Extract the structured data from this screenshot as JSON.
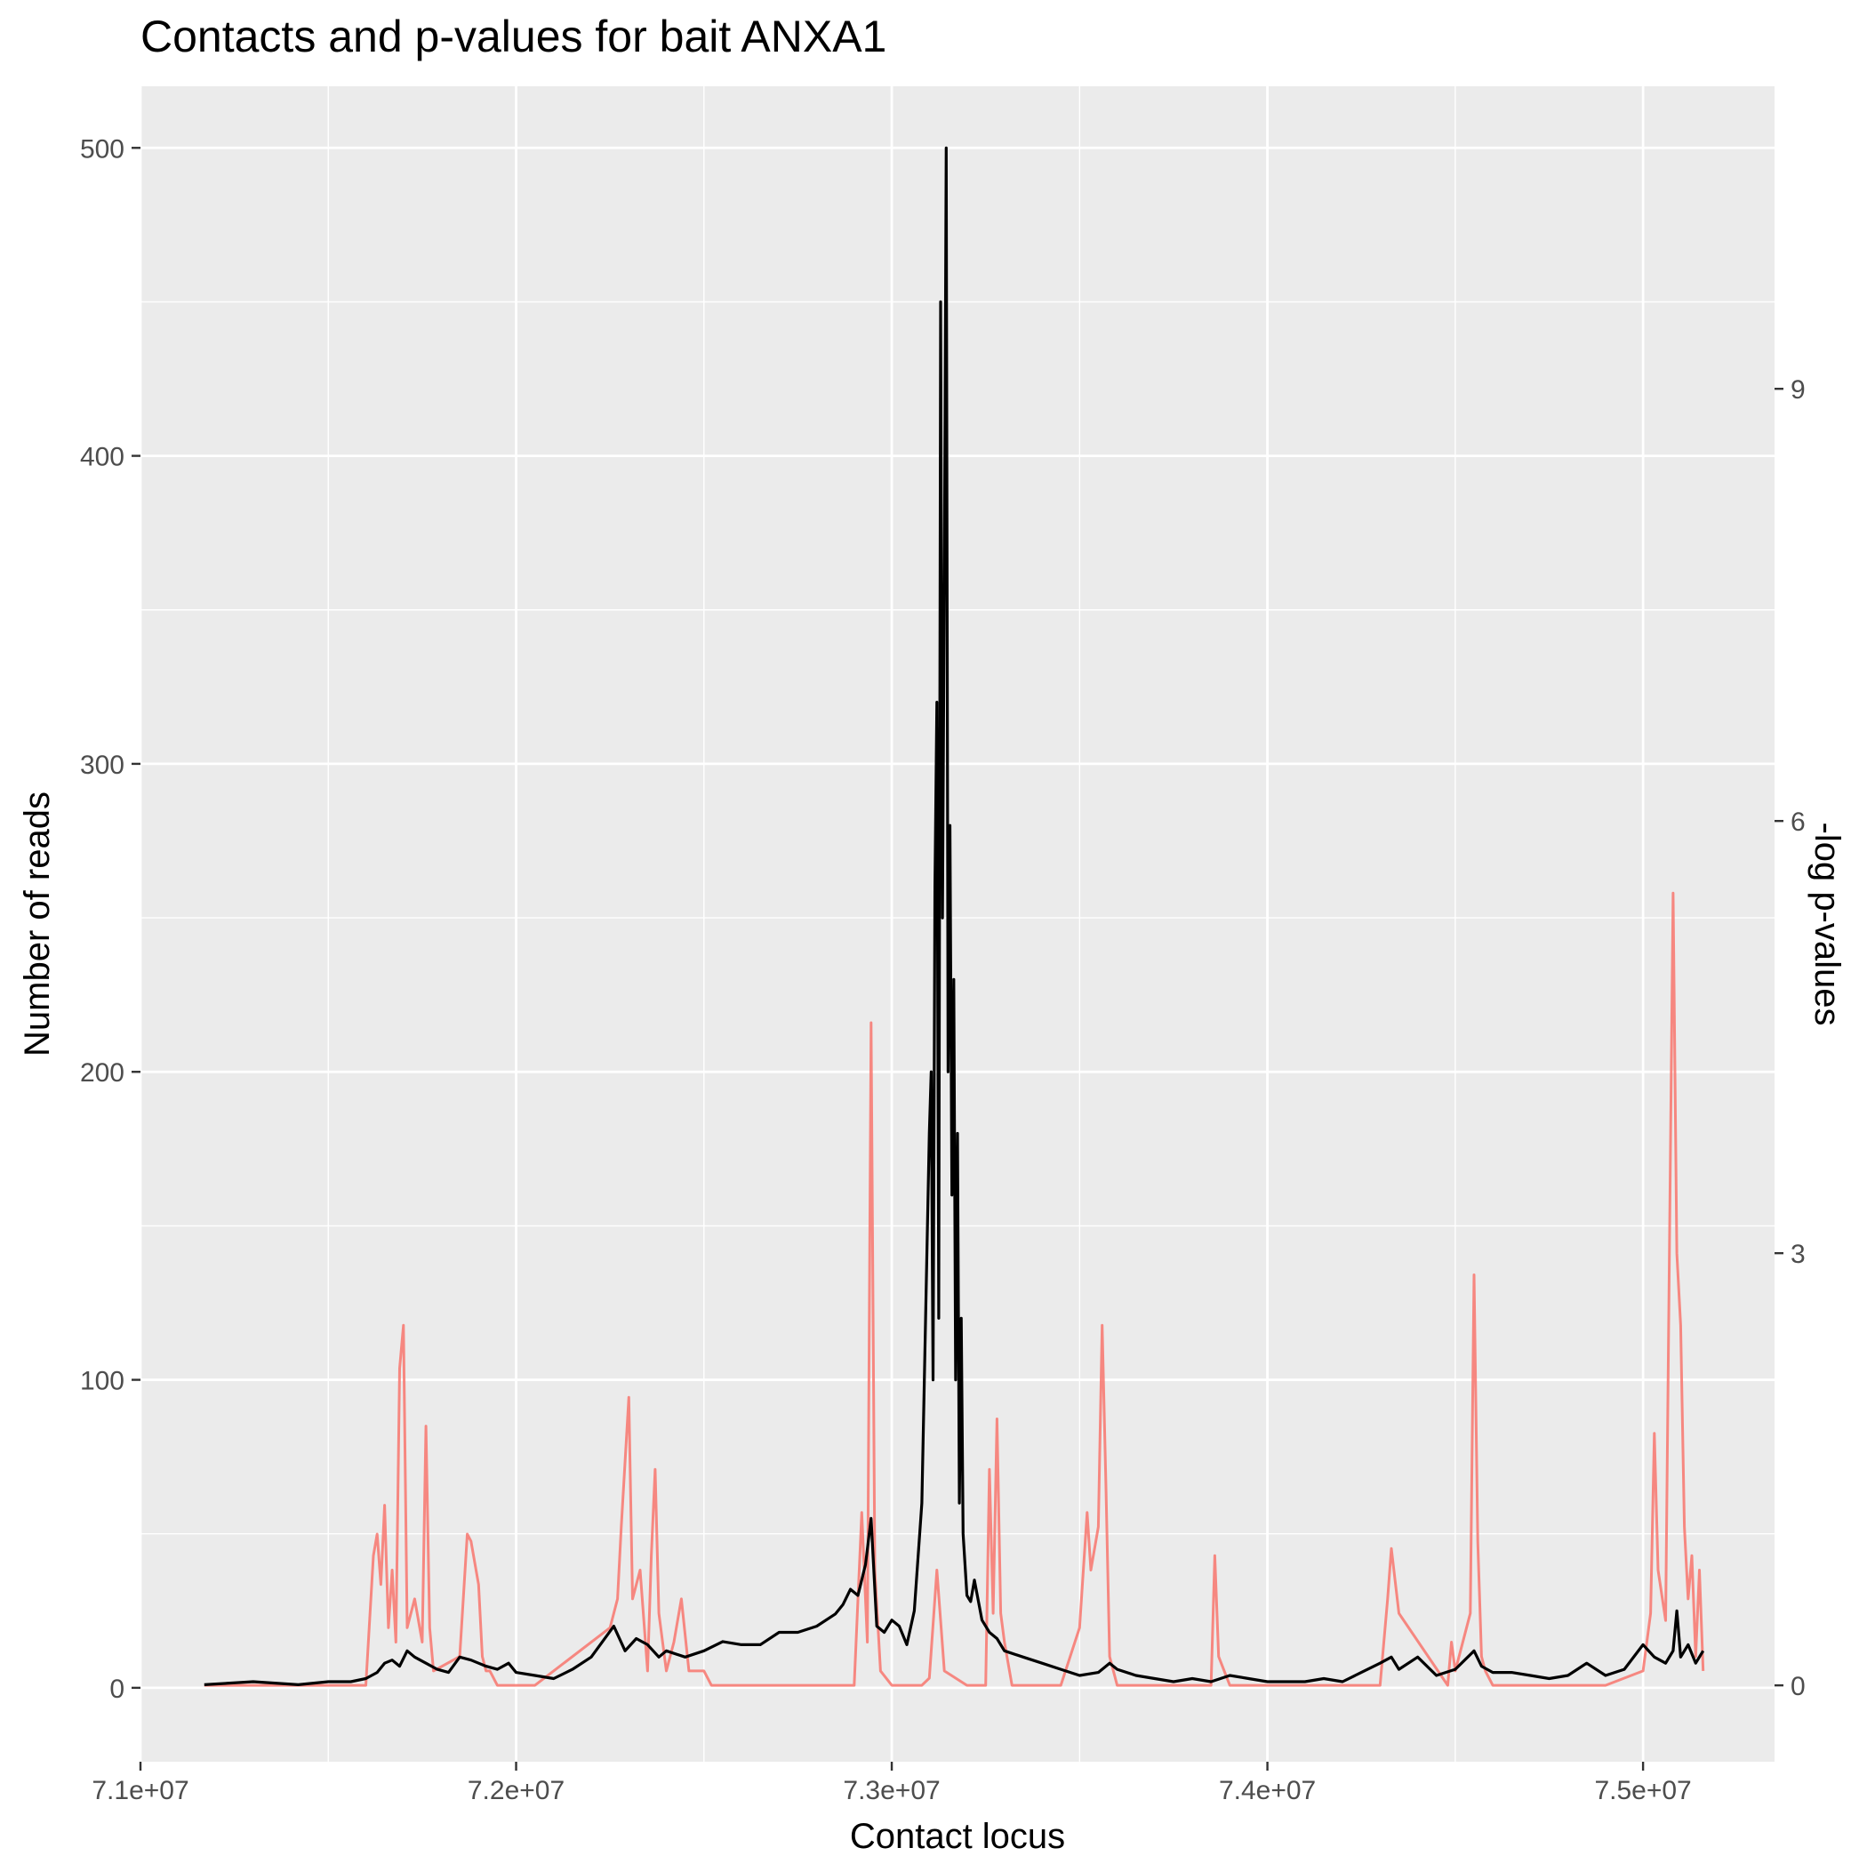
{
  "chart_data": {
    "type": "line",
    "title": "Contacts and p-values for bait ANXA1",
    "xlabel": "Contact locus",
    "ylabel": "Number of reads",
    "y2label": "-log p-values",
    "xlim": [
      71000000,
      75350000
    ],
    "ylim": [
      -24,
      520
    ],
    "y2lim": [
      -0.53,
      11.1
    ],
    "x_ticks": [
      {
        "value": 71000000,
        "label": "7.1e+07"
      },
      {
        "value": 72000000,
        "label": "7.2e+07"
      },
      {
        "value": 73000000,
        "label": "7.3e+07"
      },
      {
        "value": 74000000,
        "label": "7.4e+07"
      },
      {
        "value": 75000000,
        "label": "7.5e+07"
      }
    ],
    "y_ticks": [
      {
        "value": 0,
        "label": "0"
      },
      {
        "value": 100,
        "label": "100"
      },
      {
        "value": 200,
        "label": "200"
      },
      {
        "value": 300,
        "label": "300"
      },
      {
        "value": 400,
        "label": "400"
      },
      {
        "value": 500,
        "label": "500"
      }
    ],
    "y2_ticks": [
      {
        "value": 0,
        "label": "0"
      },
      {
        "value": 3,
        "label": "3"
      },
      {
        "value": 6,
        "label": "6"
      },
      {
        "value": 9,
        "label": "9"
      }
    ],
    "grid": true,
    "colors": {
      "panel": "#ebebeb",
      "grid": "#ffffff",
      "reads": "#000000",
      "pvalues": "#f8766d"
    },
    "series": [
      {
        "role": "reads",
        "axis": "left",
        "x": [
          71170000,
          71300000,
          71420000,
          71500000,
          71560000,
          71600000,
          71630000,
          71650000,
          71670000,
          71690000,
          71710000,
          71730000,
          71760000,
          71790000,
          71820000,
          71850000,
          71880000,
          71900000,
          71920000,
          71950000,
          71980000,
          72000000,
          72050000,
          72100000,
          72150000,
          72200000,
          72230000,
          72260000,
          72290000,
          72320000,
          72350000,
          72380000,
          72400000,
          72450000,
          72500000,
          72550000,
          72600000,
          72650000,
          72700000,
          72750000,
          72800000,
          72850000,
          72870000,
          72890000,
          72910000,
          72930000,
          72945000,
          72960000,
          72980000,
          73000000,
          73020000,
          73040000,
          73060000,
          73080000,
          73090000,
          73100000,
          73105000,
          73110000,
          73115000,
          73120000,
          73125000,
          73130000,
          73135000,
          73140000,
          73145000,
          73150000,
          73155000,
          73160000,
          73165000,
          73170000,
          73175000,
          73180000,
          73185000,
          73190000,
          73200000,
          73210000,
          73220000,
          73240000,
          73260000,
          73280000,
          73300000,
          73350000,
          73400000,
          73450000,
          73500000,
          73550000,
          73580000,
          73600000,
          73650000,
          73700000,
          73750000,
          73800000,
          73850000,
          73900000,
          73950000,
          74000000,
          74050000,
          74100000,
          74150000,
          74200000,
          74250000,
          74300000,
          74330000,
          74350000,
          74400000,
          74450000,
          74500000,
          74550000,
          74570000,
          74600000,
          74650000,
          74700000,
          74750000,
          74800000,
          74850000,
          74900000,
          74950000,
          75000000,
          75030000,
          75060000,
          75080000,
          75090000,
          75100000,
          75120000,
          75140000,
          75160000
        ],
        "y": [
          1,
          2,
          1,
          2,
          2,
          3,
          5,
          8,
          9,
          7,
          12,
          10,
          8,
          6,
          5,
          10,
          9,
          8,
          7,
          6,
          8,
          5,
          4,
          3,
          6,
          10,
          15,
          20,
          12,
          16,
          14,
          10,
          12,
          10,
          12,
          15,
          14,
          14,
          18,
          18,
          20,
          24,
          27,
          32,
          30,
          40,
          55,
          20,
          18,
          22,
          20,
          14,
          25,
          60,
          120,
          180,
          200,
          100,
          260,
          320,
          120,
          450,
          250,
          360,
          500,
          200,
          280,
          160,
          230,
          100,
          180,
          60,
          120,
          50,
          30,
          28,
          35,
          22,
          18,
          16,
          12,
          10,
          8,
          6,
          4,
          5,
          8,
          6,
          4,
          3,
          2,
          3,
          2,
          4,
          3,
          2,
          2,
          2,
          3,
          2,
          5,
          8,
          10,
          6,
          10,
          4,
          6,
          12,
          7,
          5,
          5,
          4,
          3,
          4,
          8,
          4,
          6,
          14,
          10,
          8,
          12,
          25,
          10,
          14,
          8,
          12
        ]
      },
      {
        "role": "pvalues",
        "axis": "right",
        "x": [
          71170000,
          71400000,
          71600000,
          71620000,
          71630000,
          71640000,
          71650000,
          71660000,
          71670000,
          71680000,
          71690000,
          71700000,
          71710000,
          71730000,
          71750000,
          71760000,
          71770000,
          71780000,
          71850000,
          71870000,
          71880000,
          71900000,
          71910000,
          71920000,
          71930000,
          71950000,
          72050000,
          72250000,
          72270000,
          72280000,
          72300000,
          72310000,
          72330000,
          72350000,
          72360000,
          72370000,
          72380000,
          72400000,
          72420000,
          72440000,
          72460000,
          72500000,
          72520000,
          72700000,
          72900000,
          72920000,
          72935000,
          72945000,
          72955000,
          72970000,
          73000000,
          73080000,
          73100000,
          73120000,
          73140000,
          73200000,
          73250000,
          73260000,
          73270000,
          73280000,
          73290000,
          73300000,
          73320000,
          73350000,
          73400000,
          73450000,
          73500000,
          73520000,
          73530000,
          73550000,
          73560000,
          73570000,
          73580000,
          73600000,
          73850000,
          73860000,
          73870000,
          73900000,
          74300000,
          74320000,
          74330000,
          74350000,
          74480000,
          74490000,
          74500000,
          74540000,
          74550000,
          74560000,
          74570000,
          74580000,
          74600000,
          74900000,
          75000000,
          75020000,
          75030000,
          75040000,
          75060000,
          75080000,
          75090000,
          75100000,
          75110000,
          75120000,
          75130000,
          75140000,
          75150000,
          75160000
        ],
        "y": [
          0,
          0,
          0,
          0.9,
          1.05,
          0.7,
          1.25,
          0.4,
          0.8,
          0.3,
          2.2,
          2.5,
          0.4,
          0.6,
          0.3,
          1.8,
          0.4,
          0.1,
          0.2,
          1.05,
          1.0,
          0.7,
          0.2,
          0.1,
          0.1,
          0,
          0,
          0.4,
          0.6,
          1.1,
          2.0,
          0.6,
          0.8,
          0.1,
          0.9,
          1.5,
          0.5,
          0.1,
          0.3,
          0.6,
          0.1,
          0.1,
          0,
          0,
          0,
          1.2,
          0.3,
          4.6,
          0.8,
          0.1,
          0,
          0,
          0.05,
          0.8,
          0.1,
          0,
          0,
          1.5,
          0.5,
          1.85,
          0.5,
          0.3,
          0,
          0,
          0,
          0,
          0.4,
          1.2,
          0.8,
          1.1,
          2.5,
          1.4,
          0.2,
          0,
          0,
          0.9,
          0.2,
          0,
          0,
          0.6,
          0.95,
          0.5,
          0,
          0.3,
          0.1,
          0.5,
          2.85,
          1.0,
          0.2,
          0.1,
          0,
          0,
          0.1,
          0.5,
          1.75,
          0.8,
          0.45,
          5.5,
          3.0,
          2.5,
          1.1,
          0.6,
          0.9,
          0.2,
          0.8,
          0.1
        ]
      }
    ]
  }
}
